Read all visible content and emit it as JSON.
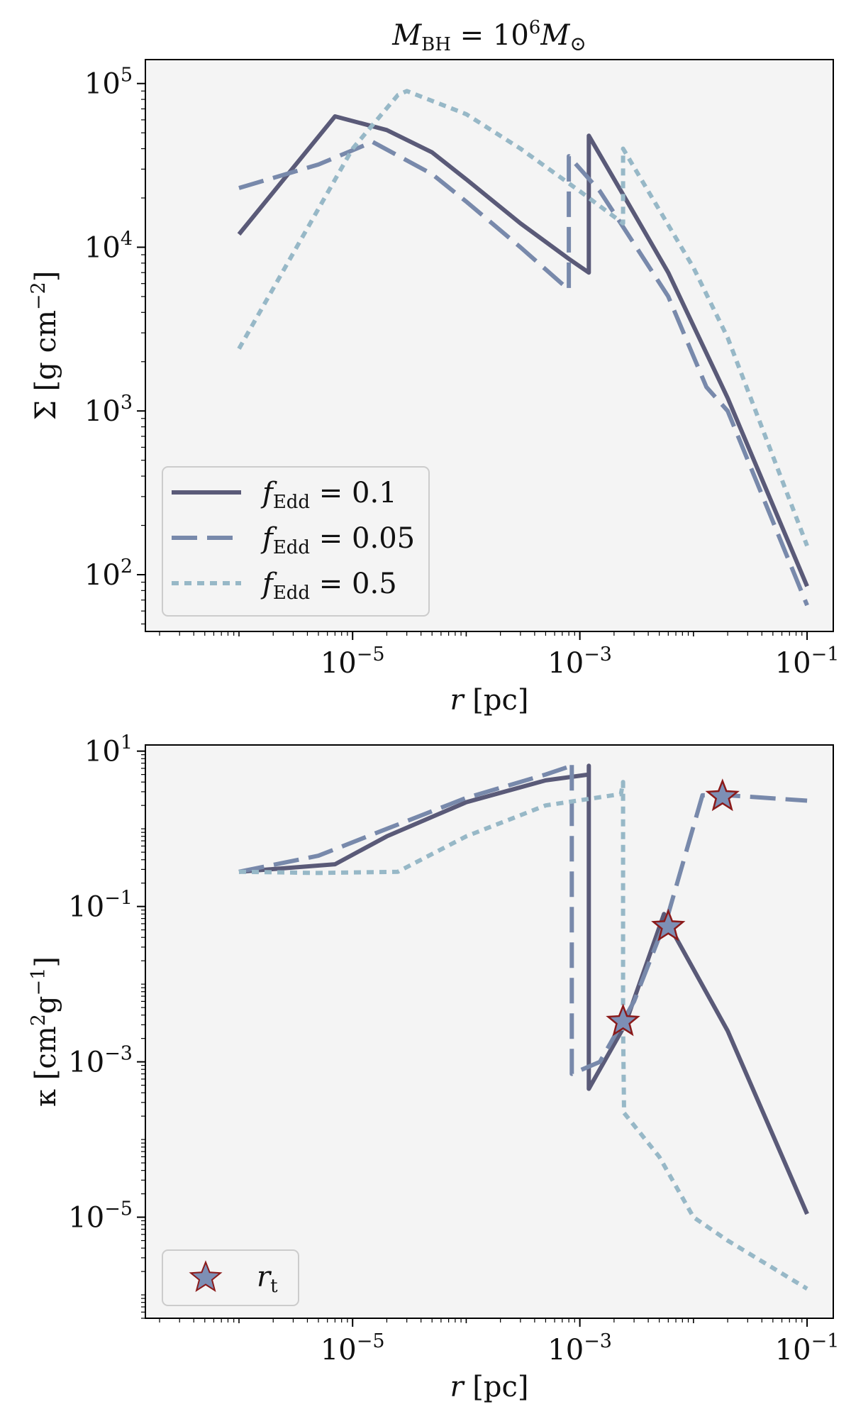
{
  "figure": {
    "title_main": "M",
    "title_sub": "BH",
    "title_eq": " = 10",
    "title_exp": "6",
    "title_tail": "M",
    "title_tail_sub": "⊙"
  },
  "colors": {
    "solid": "#5a5a78",
    "dashed": "#7889ab",
    "dotted": "#97b8c7",
    "plot_bg": "#f4f4f4",
    "star_edge": "#8b1a1a",
    "star_fill": "#7d8fb5"
  },
  "chart_data": [
    {
      "type": "line",
      "title": "M_BH = 10^6 M_⊙",
      "xscale": "log",
      "yscale": "log",
      "xlim": [
        1.5e-07,
        0.17
      ],
      "ylim": [
        45,
        140000.0
      ],
      "xlabel": "r [pc]",
      "ylabel": "Σ [g cm⁻²]",
      "xticks": [
        {
          "value": 1e-05,
          "label": "10",
          "exp": "−5"
        },
        {
          "value": 0.001,
          "label": "10",
          "exp": "−3"
        },
        {
          "value": 0.1,
          "label": "10",
          "exp": "−1"
        }
      ],
      "yticks": [
        {
          "value": 100,
          "label": "10",
          "exp": "2"
        },
        {
          "value": 1000,
          "label": "10",
          "exp": "3"
        },
        {
          "value": 10000,
          "label": "10",
          "exp": "4"
        },
        {
          "value": 100000,
          "label": "10",
          "exp": "5"
        }
      ],
      "legend_position": "lower-left",
      "series": [
        {
          "name": "f_Edd = 0.1",
          "label_main": "f",
          "label_sub": "Edd",
          "label_val": " = 0.1",
          "style": "solid",
          "x": [
            1e-06,
            7e-06,
            2e-05,
            5e-05,
            0.0001,
            0.0003,
            0.0008,
            0.0012,
            0.0012,
            0.0025,
            0.006,
            0.02,
            0.1
          ],
          "y": [
            12000,
            63000,
            52000,
            38000,
            26000,
            14000,
            8500,
            7000,
            48000,
            20000,
            7000,
            1200,
            85
          ]
        },
        {
          "name": "f_Edd = 0.05",
          "label_main": "f",
          "label_sub": "Edd",
          "label_val": " = 0.05",
          "style": "dashed",
          "x": [
            1e-06,
            5e-06,
            1.5e-05,
            5e-05,
            0.0001,
            0.0003,
            0.0008,
            0.0008,
            0.0015,
            0.003,
            0.006,
            0.013,
            0.02,
            0.1
          ],
          "y": [
            23000,
            32000,
            44000,
            28000,
            19000,
            10000,
            5500,
            36000,
            22000,
            10500,
            5000,
            1400,
            1000,
            65
          ]
        },
        {
          "name": "f_Edd = 0.5",
          "label_main": "f",
          "label_sub": "Edd",
          "label_val": " = 0.5",
          "style": "dotted",
          "x": [
            1e-06,
            1e-05,
            2.5e-05,
            3e-05,
            0.0001,
            0.0003,
            0.001,
            0.0024,
            0.0024,
            0.004,
            0.01,
            0.02,
            0.1
          ],
          "y": [
            2400,
            40000,
            85000,
            90000,
            65000,
            40000,
            22000,
            14000,
            40000,
            22000,
            7500,
            2800,
            150
          ]
        }
      ]
    },
    {
      "type": "line",
      "title": "",
      "xscale": "log",
      "yscale": "log",
      "xlim": [
        1.5e-07,
        0.17
      ],
      "ylim": [
        5e-07,
        12
      ],
      "xlabel": "r [pc]",
      "ylabel": "κ [cm² g⁻¹]",
      "xticks": [
        {
          "value": 1e-05,
          "label": "10",
          "exp": "−5"
        },
        {
          "value": 0.001,
          "label": "10",
          "exp": "−3"
        },
        {
          "value": 0.1,
          "label": "10",
          "exp": "−1"
        }
      ],
      "yticks": [
        {
          "value": 1e-05,
          "label": "10",
          "exp": "−5"
        },
        {
          "value": 0.001,
          "label": "10",
          "exp": "−3"
        },
        {
          "value": 0.1,
          "label": "10",
          "exp": "−1"
        },
        {
          "value": 10,
          "label": "10",
          "exp": "1"
        }
      ],
      "legend_position": "lower-left",
      "legend_label_main": "r",
      "legend_label_sub": "t",
      "series": [
        {
          "name": "f_Edd = 0.1",
          "style": "solid",
          "x": [
            1e-06,
            7e-06,
            2e-05,
            0.0001,
            0.0005,
            0.0012,
            0.0012,
            0.0012,
            0.0025,
            0.0055,
            0.006,
            0.02,
            0.1
          ],
          "y": [
            0.28,
            0.35,
            0.8,
            2.2,
            4.2,
            5.0,
            6.5,
            0.00045,
            0.003,
            0.08,
            0.06,
            0.0025,
            1.1e-05
          ]
        },
        {
          "name": "f_Edd = 0.05",
          "style": "dashed",
          "x": [
            1e-06,
            5e-06,
            2e-05,
            0.0001,
            0.0005,
            0.00085,
            0.00085,
            0.00085,
            0.0015,
            0.003,
            0.006,
            0.012,
            0.02,
            0.1
          ],
          "y": [
            0.28,
            0.45,
            1.0,
            2.5,
            5.0,
            6.5,
            7.0,
            0.0007,
            0.001,
            0.006,
            0.08,
            2.7,
            2.7,
            2.3
          ]
        },
        {
          "name": "f_Edd = 0.5",
          "style": "dotted",
          "x": [
            1e-06,
            5e-06,
            2.5e-05,
            0.0001,
            0.0005,
            0.0023,
            0.0024,
            0.0024,
            0.00245,
            0.005,
            0.01,
            0.02,
            0.1
          ],
          "y": [
            0.28,
            0.27,
            0.28,
            0.8,
            2.0,
            2.8,
            4.0,
            0.003,
            0.00022,
            6e-05,
            1e-05,
            5e-06,
            1.2e-06
          ]
        }
      ],
      "markers": [
        {
          "label": "r_t",
          "x": 0.0024,
          "y": 0.0033
        },
        {
          "label": "r_t",
          "x": 0.006,
          "y": 0.055
        },
        {
          "label": "r_t",
          "x": 0.018,
          "y": 2.6
        }
      ]
    }
  ]
}
